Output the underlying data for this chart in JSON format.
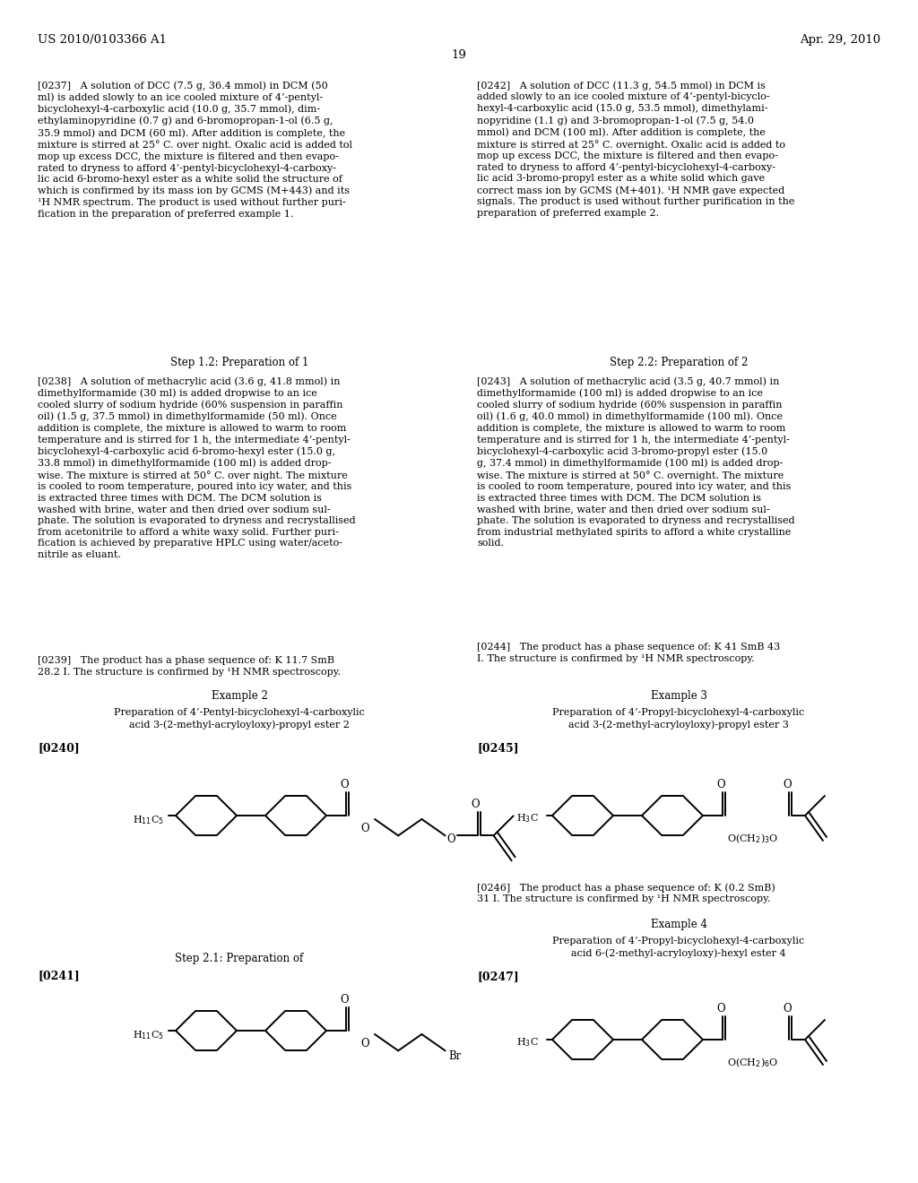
{
  "page_header_left": "US 2010/0103366 A1",
  "page_header_right": "Apr. 29, 2010",
  "page_number": "19",
  "background_color": "#ffffff",
  "text_color": "#000000",
  "body_fs": 8.0,
  "header_fs": 9.5,
  "section_fs": 8.5,
  "bold_fs": 9.0,
  "para_0237": "[0237]   A solution of DCC (7.5 g, 36.4 mmol) in DCM (50\nml) is added slowly to an ice cooled mixture of 4’-pentyl-\nbicyclohexyl-4-carboxylic acid (10.0 g, 35.7 mmol), dim-\nethylaminopyridine (0.7 g) and 6-bromopropan-1-ol (6.5 g,\n35.9 mmol) and DCM (60 ml). After addition is complete, the\nmixture is stirred at 25° C. over night. Oxalic acid is added tol\nmop up excess DCC, the mixture is filtered and then evapo-\nrated to dryness to afford 4’-pentyl-bicyclohexyl-4-carboxy-\nlic acid 6-bromo-hexyl ester as a white solid the structure of\nwhich is confirmed by its mass ion by GCMS (M+443) and its\n¹H NMR spectrum. The product is used without further puri-\nfication in the preparation of preferred example 1.",
  "para_0242": "[0242]   A solution of DCC (11.3 g, 54.5 mmol) in DCM is\nadded slowly to an ice cooled mixture of 4’-pentyl-bicyclo-\nhexyl-4-carboxylic acid (15.0 g, 53.5 mmol), dimethylami-\nnopyridine (1.1 g) and 3-bromopropan-1-ol (7.5 g, 54.0\nmmol) and DCM (100 ml). After addition is complete, the\nmixture is stirred at 25° C. overnight. Oxalic acid is added to\nmop up excess DCC, the mixture is filtered and then evapo-\nrated to dryness to afford 4’-pentyl-bicyclohexyl-4-carboxy-\nlic acid 3-bromo-propyl ester as a white solid which gave\ncorrect mass ion by GCMS (M+401). ¹H NMR gave expected\nsignals. The product is used without further purification in the\npreparation of preferred example 2.",
  "step12_title": "Step 1.2: Preparation of 1",
  "step22_title": "Step 2.2: Preparation of 2",
  "para_0238": "[0238]   A solution of methacrylic acid (3.6 g, 41.8 mmol) in\ndimethylformamide (30 ml) is added dropwise to an ice\ncooled slurry of sodium hydride (60% suspension in paraffin\noil) (1.5 g, 37.5 mmol) in dimethylformamide (50 ml). Once\naddition is complete, the mixture is allowed to warm to room\ntemperature and is stirred for 1 h, the intermediate 4’-pentyl-\nbicyclohexyl-4-carboxylic acid 6-bromo-hexyl ester (15.0 g,\n33.8 mmol) in dimethylformamide (100 ml) is added drop-\nwise. The mixture is stirred at 50° C. over night. The mixture\nis cooled to room temperature, poured into icy water, and this\nis extracted three times with DCM. The DCM solution is\nwashed with brine, water and then dried over sodium sul-\nphate. The solution is evaporated to dryness and recrystallised\nfrom acetonitrile to afford a white waxy solid. Further puri-\nfication is achieved by preparative HPLC using water/aceto-\nnitrile as eluant.",
  "para_0239": "[0239]   The product has a phase sequence of: K 11.7 SmB\n28.2 I. The structure is confirmed by ¹H NMR spectroscopy.",
  "para_0243": "[0243]   A solution of methacrylic acid (3.5 g, 40.7 mmol) in\ndimethylformamide (100 ml) is added dropwise to an ice\ncooled slurry of sodium hydride (60% suspension in paraffin\noil) (1.6 g, 40.0 mmol) in dimethylformamide (100 ml). Once\naddition is complete, the mixture is allowed to warm to room\ntemperature and is stirred for 1 h, the intermediate 4’-pentyl-\nbicyclohexyl-4-carboxylic acid 3-bromo-propyl ester (15.0\ng, 37.4 mmol) in dimethylformamide (100 ml) is added drop-\nwise. The mixture is stirred at 50° C. overnight. The mixture\nis cooled to room temperature, poured into icy water, and this\nis extracted three times with DCM. The DCM solution is\nwashed with brine, water and then dried over sodium sul-\nphate. The solution is evaporated to dryness and recrystallised\nfrom industrial methylated spirits to afford a white crystalline\nsolid.",
  "para_0244": "[0244]   The product has a phase sequence of: K 41 SmB 43\nI. The structure is confirmed by ¹H NMR spectroscopy.",
  "example2_title": "Example 2",
  "example2_sub": "Preparation of 4’-Pentyl-bicyclohexyl-4-carboxylic\nacid 3-(2-methyl-acryloyloxy)-propyl ester 2",
  "para_0240": "[0240]",
  "example3_title": "Example 3",
  "example3_sub": "Preparation of 4’-Propyl-bicyclohexyl-4-carboxylic\nacid 3-(2-methyl-acryloyloxy)-propyl ester 3",
  "para_0245": "[0245]",
  "para_0246": "[0246]   The product has a phase sequence of: K (0.2 SmB)\n31 I. The structure is confirmed by ¹H NMR spectroscopy.",
  "example4_title": "Example 4",
  "example4_sub": "Preparation of 4’-Propyl-bicyclohexyl-4-carboxylic\nacid 6-(2-methyl-acryloyloxy)-hexyl ester 4",
  "para_0247": "[0247]",
  "step21_title": "Step 2.1: Preparation of"
}
